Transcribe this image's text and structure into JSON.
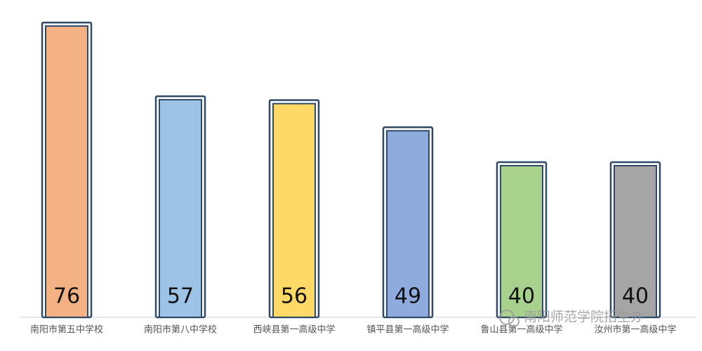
{
  "chart_data": {
    "type": "bar",
    "categories": [
      "南阳市第五中学校",
      "南阳市第八中学校",
      "西峡县第一高级中学",
      "镇平县第一高级中学",
      "鲁山县第一高级中学",
      "汝州市第一高级中学"
    ],
    "values": [
      76,
      57,
      56,
      49,
      40,
      40
    ],
    "colors": [
      "#F4B183",
      "#9DC3E6",
      "#FFD966",
      "#8FAADC",
      "#A9D18E",
      "#A5A5A5"
    ],
    "ylim": [
      0,
      80
    ],
    "watermark": "南阳师范学院招生办"
  }
}
